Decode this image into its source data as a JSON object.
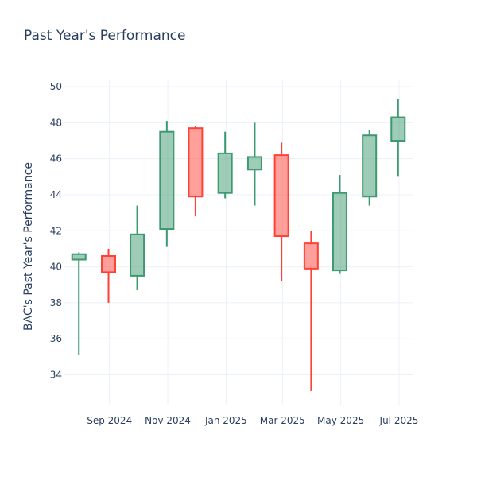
{
  "chart_data": {
    "type": "candlestick",
    "title": "Past Year's Performance",
    "xlabel": "",
    "ylabel": "BAC's Past Year's Performance",
    "ylim": [
      32.3,
      50.4
    ],
    "yticks": [
      34,
      36,
      38,
      40,
      42,
      44,
      46,
      48,
      50
    ],
    "xticks": [
      {
        "date": "2024-09-01",
        "label": "Sep 2024"
      },
      {
        "date": "2024-11-01",
        "label": "Nov 2024"
      },
      {
        "date": "2025-01-01",
        "label": "Jan 2025"
      },
      {
        "date": "2025-03-01",
        "label": "Mar 2025"
      },
      {
        "date": "2025-05-01",
        "label": "May 2025"
      },
      {
        "date": "2025-07-01",
        "label": "Jul 2025"
      }
    ],
    "xlim": [
      "2024-07-15",
      "2025-07-16"
    ],
    "grid": true,
    "increasing_color": "#3D9970",
    "decreasing_color": "#FF4136",
    "candles": [
      {
        "date": "2024-07-31",
        "open": 40.4,
        "high": 40.8,
        "low": 35.1,
        "close": 40.7
      },
      {
        "date": "2024-08-31",
        "open": 40.6,
        "high": 41.0,
        "low": 38.0,
        "close": 39.7
      },
      {
        "date": "2024-09-30",
        "open": 39.5,
        "high": 43.4,
        "low": 38.7,
        "close": 41.8
      },
      {
        "date": "2024-10-31",
        "open": 42.1,
        "high": 48.1,
        "low": 41.1,
        "close": 47.5
      },
      {
        "date": "2024-11-30",
        "open": 47.7,
        "high": 47.8,
        "low": 42.8,
        "close": 43.9
      },
      {
        "date": "2024-12-31",
        "open": 44.1,
        "high": 47.5,
        "low": 43.8,
        "close": 46.3
      },
      {
        "date": "2025-01-31",
        "open": 45.4,
        "high": 48.0,
        "low": 43.4,
        "close": 46.1
      },
      {
        "date": "2025-02-28",
        "open": 46.2,
        "high": 46.9,
        "low": 39.2,
        "close": 41.7
      },
      {
        "date": "2025-03-31",
        "open": 41.3,
        "high": 42.0,
        "low": 33.1,
        "close": 39.9
      },
      {
        "date": "2025-04-30",
        "open": 39.8,
        "high": 45.1,
        "low": 39.6,
        "close": 44.1
      },
      {
        "date": "2025-05-31",
        "open": 43.9,
        "high": 47.6,
        "low": 43.4,
        "close": 47.3
      },
      {
        "date": "2025-06-30",
        "open": 47.0,
        "high": 49.3,
        "low": 45.0,
        "close": 48.3
      }
    ]
  }
}
